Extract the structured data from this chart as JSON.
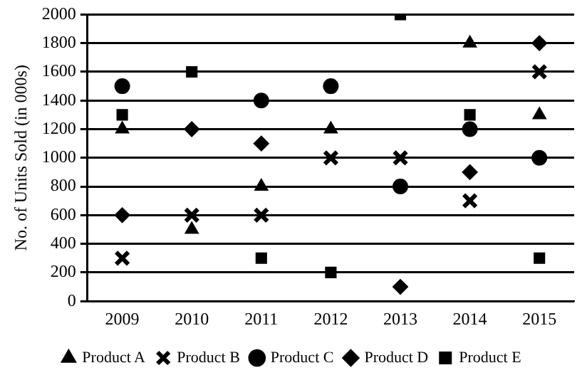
{
  "chart_data": {
    "type": "scatter",
    "ylabel": "No. of Units Sold (in 000s)",
    "categories": [
      "2009",
      "2010",
      "2011",
      "2012",
      "2013",
      "2014",
      "2015"
    ],
    "series": [
      {
        "name": "Product A",
        "color": "#000000",
        "marker": "triangle",
        "values": [
          1200,
          500,
          800,
          1200,
          null,
          1800,
          1300
        ]
      },
      {
        "name": "Product B",
        "color": "#000000",
        "marker": "cross",
        "values": [
          300,
          600,
          600,
          1000,
          1000,
          700,
          1600
        ]
      },
      {
        "name": "Product C",
        "color": "#000000",
        "marker": "circle",
        "values": [
          1500,
          null,
          1400,
          1500,
          800,
          1200,
          1000
        ]
      },
      {
        "name": "Product D",
        "color": "#000000",
        "marker": "diamond",
        "values": [
          600,
          1200,
          1100,
          null,
          100,
          900,
          1800
        ]
      },
      {
        "name": "Product E",
        "color": "#000000",
        "marker": "square",
        "values": [
          1300,
          1600,
          300,
          200,
          2000,
          1300,
          300
        ]
      }
    ],
    "ylim": [
      0,
      2000
    ],
    "yticks": [
      0,
      200,
      400,
      600,
      800,
      1000,
      1200,
      1400,
      1600,
      1800,
      2000
    ],
    "grid": "y",
    "legend": "bottom"
  }
}
